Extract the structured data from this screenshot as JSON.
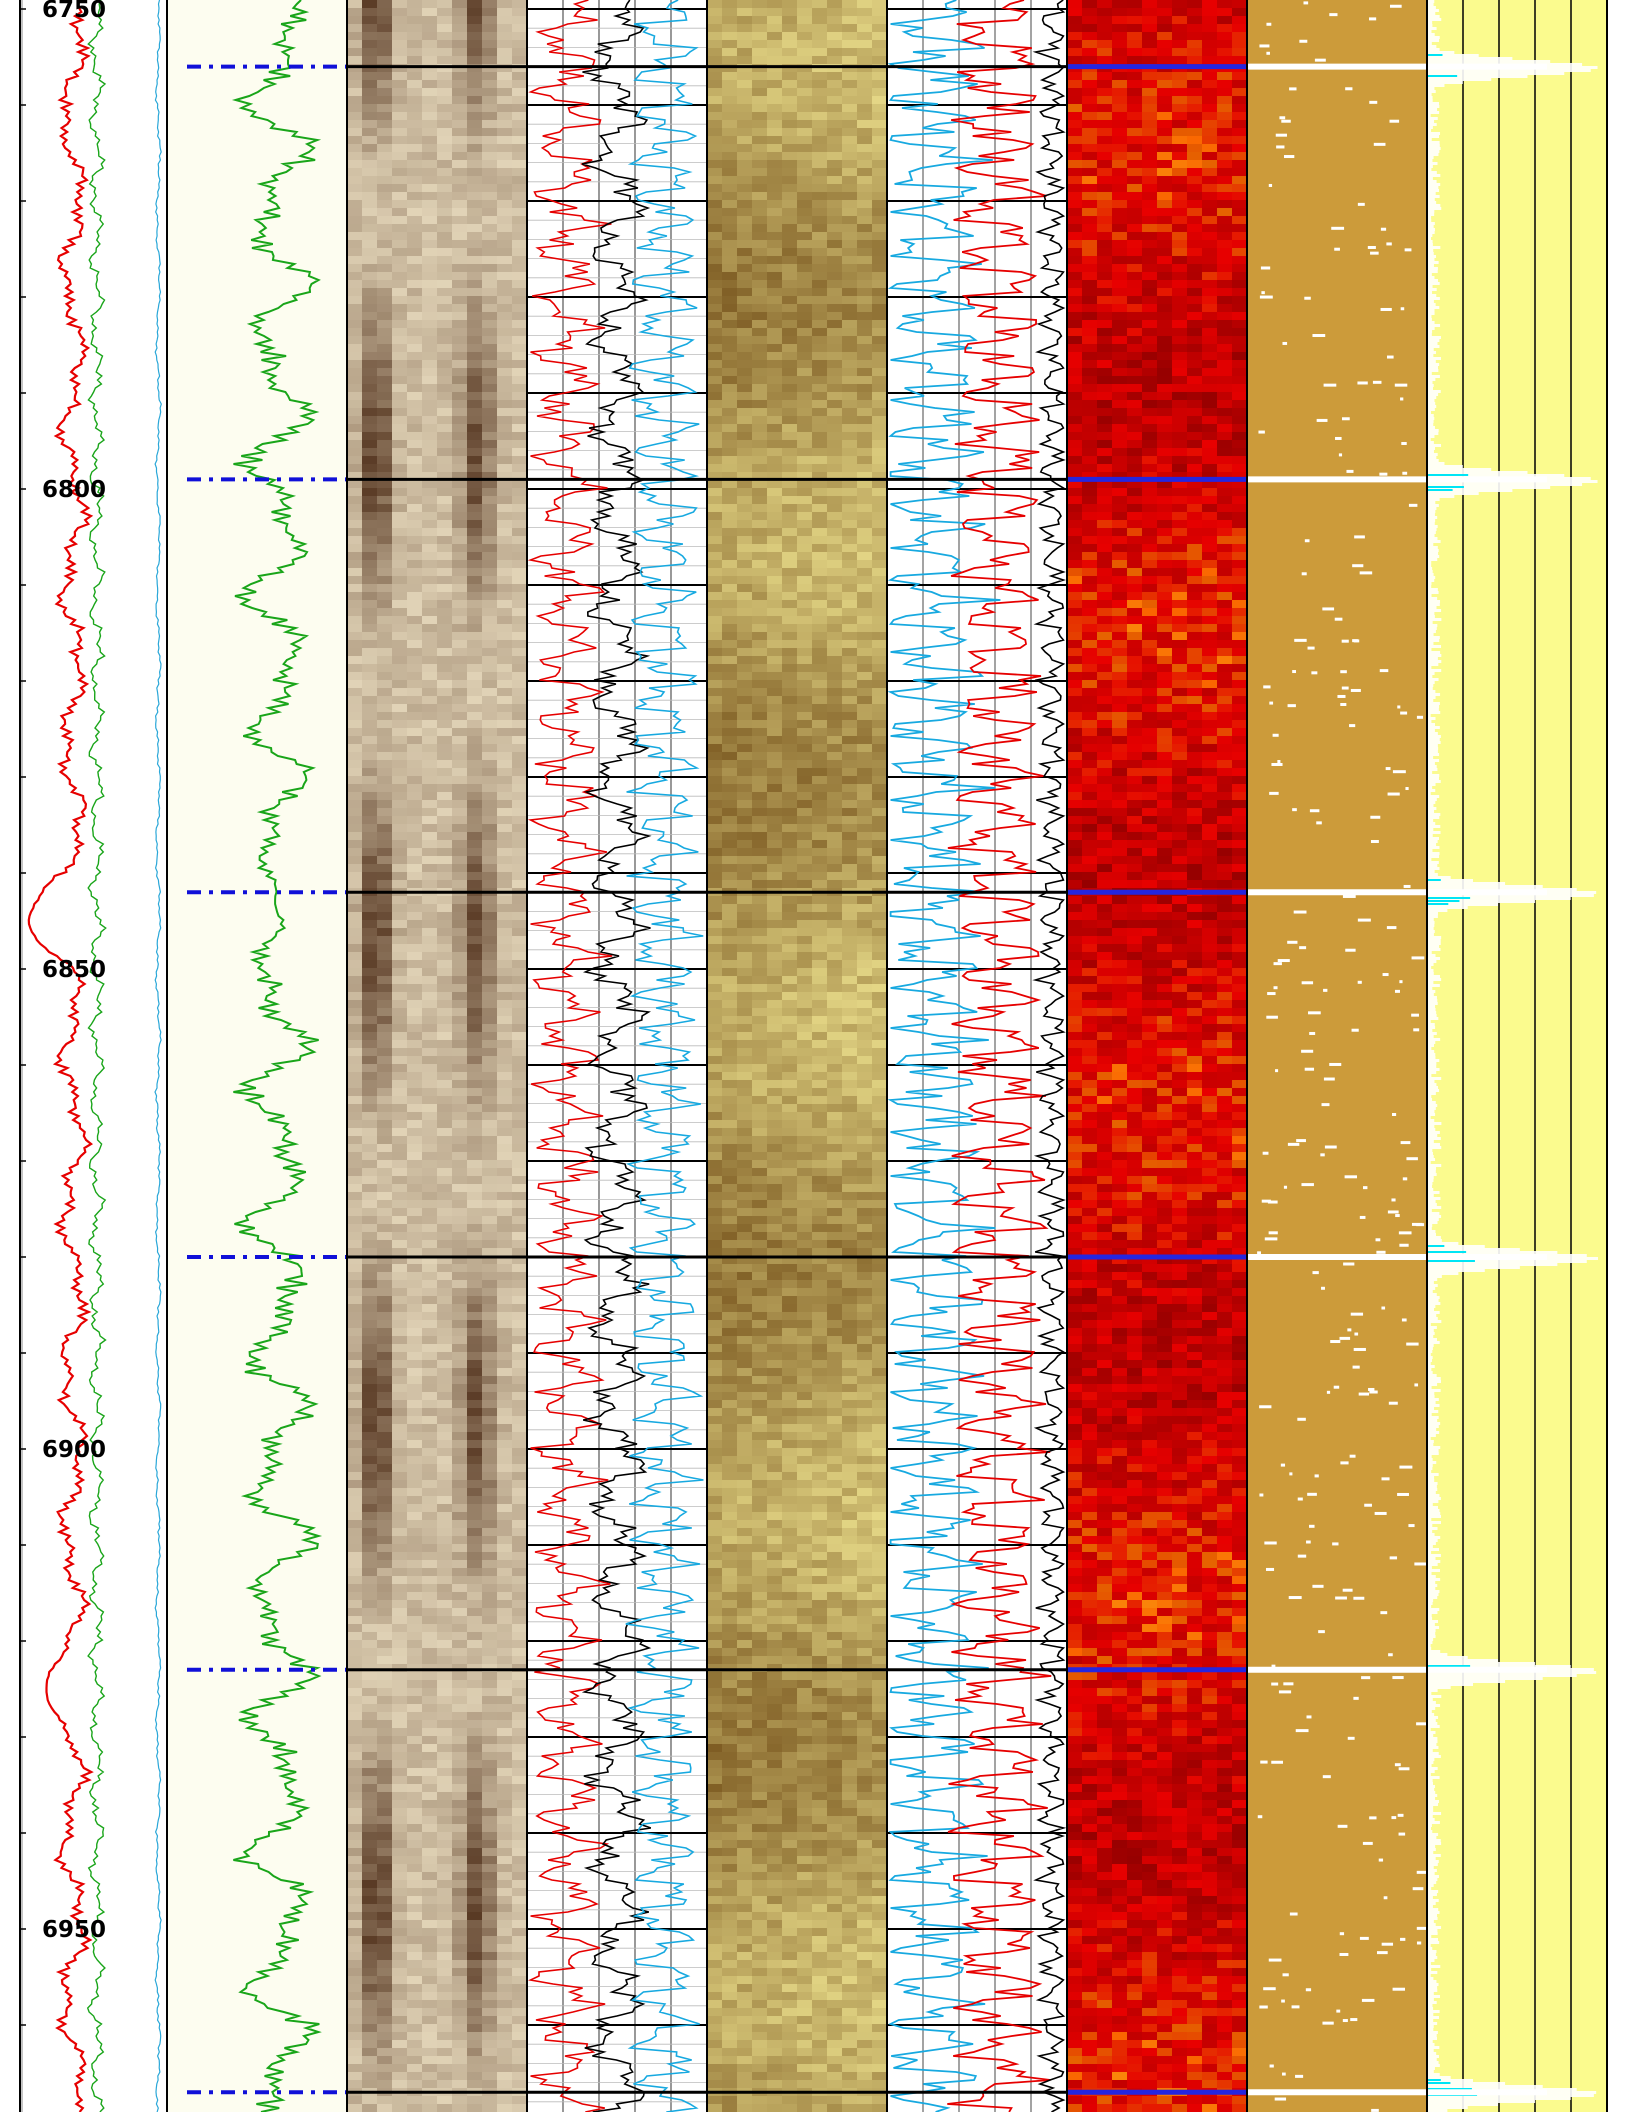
{
  "chart_data": {
    "type": "well-log",
    "depth_axis": {
      "top": 6750,
      "bottom": 6970,
      "labels": [
        6750,
        6800,
        6850,
        6900,
        6950
      ]
    },
    "events": [
      6756,
      6799,
      6842,
      6880,
      6923,
      6967
    ],
    "tracks": [
      {
        "name": "",
        "kind": "curves",
        "curves": [
          {
            "color": "#e60000",
            "base": 0.36,
            "amp": 0.06,
            "deflections": [
              {
                "at": 6845,
                "to": 0.06
              },
              {
                "at": 6925,
                "to": 0.18
              }
            ]
          },
          {
            "color": "#1aa51a",
            "base": 0.52,
            "amp": 0.03
          },
          {
            "color": "#2aa7d8",
            "base": 0.94,
            "amp": 0.01
          }
        ]
      },
      {
        "name": "",
        "kind": "curve-fill",
        "fill": "#fdfdf0",
        "curve_color": "#19a519"
      },
      {
        "name": "",
        "kind": "image",
        "palette": "copper"
      },
      {
        "name": "",
        "kind": "curves-grid",
        "curve_colors": [
          "#e60000",
          "#000000",
          "#17a9e0"
        ]
      },
      {
        "name": "",
        "kind": "image",
        "palette": "tan"
      },
      {
        "name": "",
        "kind": "curves",
        "curve_colors": [
          "#17a9e0",
          "#e60000",
          "#000000"
        ]
      },
      {
        "name": "",
        "kind": "image",
        "palette": "hot"
      },
      {
        "name": "",
        "kind": "fill",
        "fill": "#cc9b3a"
      },
      {
        "name": "",
        "kind": "spikes",
        "fill": "#fbfb8e",
        "spike_color": "#00e5f5"
      }
    ]
  }
}
